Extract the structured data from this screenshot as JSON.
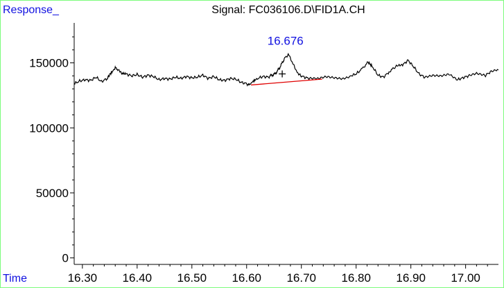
{
  "chart_data": {
    "type": "line",
    "title": "Signal: FC036106.D\\FID1A.CH",
    "ylabel": "Response_",
    "xlabel": "Time",
    "xlim": [
      16.285,
      17.06
    ],
    "ylim": [
      -5000,
      185000
    ],
    "x_ticks": [
      "16.30",
      "16.40",
      "16.50",
      "16.60",
      "16.70",
      "16.80",
      "16.90",
      "17.00"
    ],
    "y_ticks": [
      "0",
      "50000",
      "100000",
      "150000"
    ],
    "grid": false,
    "series": [
      {
        "color": "#000000",
        "points": [
          [
            16.285,
            134000
          ],
          [
            16.295,
            136000
          ],
          [
            16.305,
            137000
          ],
          [
            16.315,
            136500
          ],
          [
            16.325,
            139000
          ],
          [
            16.335,
            135500
          ],
          [
            16.345,
            138000
          ],
          [
            16.352,
            142000
          ],
          [
            16.36,
            146000
          ],
          [
            16.365,
            145000
          ],
          [
            16.372,
            142000
          ],
          [
            16.38,
            141500
          ],
          [
            16.39,
            140000
          ],
          [
            16.4,
            141000
          ],
          [
            16.41,
            139000
          ],
          [
            16.42,
            140500
          ],
          [
            16.43,
            139500
          ],
          [
            16.44,
            137000
          ],
          [
            16.45,
            138000
          ],
          [
            16.46,
            137500
          ],
          [
            16.47,
            139000
          ],
          [
            16.48,
            138000
          ],
          [
            16.49,
            139500
          ],
          [
            16.5,
            138500
          ],
          [
            16.51,
            139000
          ],
          [
            16.52,
            140500
          ],
          [
            16.53,
            138000
          ],
          [
            16.54,
            139500
          ],
          [
            16.55,
            137000
          ],
          [
            16.56,
            136500
          ],
          [
            16.57,
            138000
          ],
          [
            16.58,
            137500
          ],
          [
            16.59,
            135000
          ],
          [
            16.6,
            134000
          ],
          [
            16.605,
            133000
          ],
          [
            16.612,
            136000
          ],
          [
            16.62,
            138000
          ],
          [
            16.63,
            139500
          ],
          [
            16.64,
            139000
          ],
          [
            16.645,
            140500
          ],
          [
            16.65,
            141000
          ],
          [
            16.655,
            143000
          ],
          [
            16.66,
            146000
          ],
          [
            16.665,
            150000
          ],
          [
            16.67,
            154000
          ],
          [
            16.676,
            156500
          ],
          [
            16.682,
            152000
          ],
          [
            16.688,
            146000
          ],
          [
            16.695,
            141000
          ],
          [
            16.705,
            139000
          ],
          [
            16.715,
            138000
          ],
          [
            16.73,
            137500
          ],
          [
            16.745,
            139000
          ],
          [
            16.76,
            138500
          ],
          [
            16.775,
            138000
          ],
          [
            16.79,
            140000
          ],
          [
            16.8,
            141500
          ],
          [
            16.81,
            145000
          ],
          [
            16.822,
            150500
          ],
          [
            16.83,
            147000
          ],
          [
            16.84,
            140500
          ],
          [
            16.85,
            139000
          ],
          [
            16.86,
            143000
          ],
          [
            16.872,
            147000
          ],
          [
            16.885,
            148500
          ],
          [
            16.895,
            152000
          ],
          [
            16.905,
            147000
          ],
          [
            16.915,
            141500
          ],
          [
            16.925,
            139000
          ],
          [
            16.94,
            140000
          ],
          [
            16.955,
            139500
          ],
          [
            16.97,
            141000
          ],
          [
            16.985,
            137000
          ],
          [
            16.995,
            138500
          ],
          [
            17.005,
            140000
          ],
          [
            17.02,
            141500
          ],
          [
            17.035,
            140000
          ],
          [
            17.045,
            143000
          ],
          [
            17.06,
            144500
          ]
        ]
      }
    ],
    "baseline": {
      "color": "#E00000",
      "points": [
        [
          16.608,
          133000
        ],
        [
          16.738,
          137500
        ]
      ]
    },
    "peak": {
      "label": "16.676",
      "x": 16.676,
      "y": 156500,
      "marker_x": 16.665,
      "marker_y": 141500,
      "label_color": "#1010E0"
    }
  },
  "colors": {
    "frame": "#7CFC7C",
    "corner_label": "#1010E0"
  }
}
